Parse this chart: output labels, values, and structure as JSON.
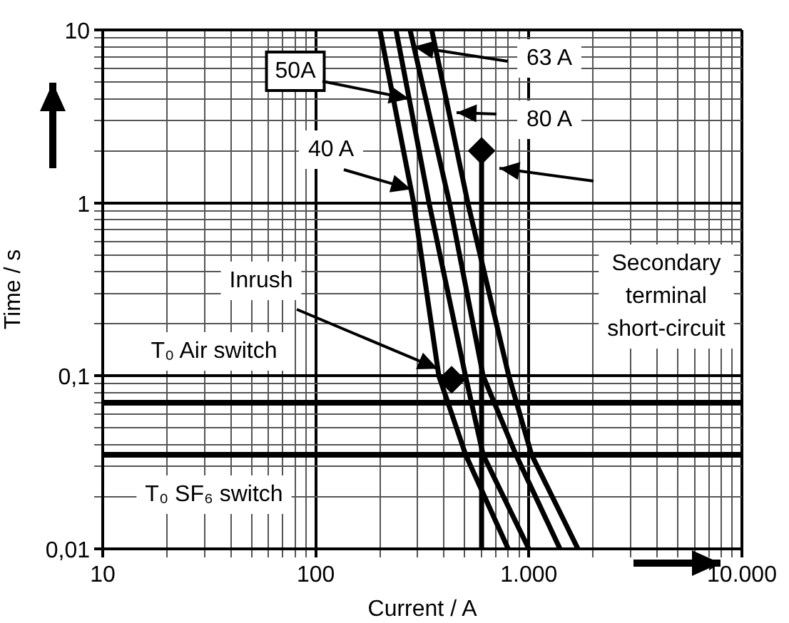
{
  "chart_data": {
    "type": "line",
    "xlabel": "Current / A",
    "ylabel": "Time / s",
    "log": "xy",
    "grid": true,
    "legend": false,
    "marker": "none",
    "line_style": "solid",
    "xlim": [
      10,
      10000
    ],
    "ylim": [
      0.01,
      10
    ],
    "xticks": [
      10,
      {
        "value": 20,
        "label": null
      },
      {
        "value": 30,
        "label": null
      },
      {
        "value": 40,
        "label": null
      },
      {
        "value": 50,
        "label": null
      },
      {
        "value": 60,
        "label": null
      },
      {
        "value": 70,
        "label": null
      },
      {
        "value": 80,
        "label": null
      },
      {
        "value": 90,
        "label": null
      },
      100,
      {
        "value": 200,
        "label": null
      },
      {
        "value": 300,
        "label": null
      },
      {
        "value": 400,
        "label": null
      },
      {
        "value": 500,
        "label": null
      },
      {
        "value": 600,
        "label": null
      },
      {
        "value": 700,
        "label": null
      },
      {
        "value": 800,
        "label": null
      },
      {
        "value": 900,
        "label": null
      },
      {
        "value": 1000,
        "label": "1.000"
      },
      {
        "value": 2000,
        "label": null
      },
      {
        "value": 3000,
        "label": null
      },
      {
        "value": 4000,
        "label": null
      },
      {
        "value": 5000,
        "label": null
      },
      {
        "value": 6000,
        "label": null
      },
      {
        "value": 7000,
        "label": null
      },
      {
        "value": 8000,
        "label": null
      },
      {
        "value": 9000,
        "label": null
      },
      {
        "value": 10000,
        "label": "10.000"
      }
    ],
    "yticks": [
      {
        "value": 0.01,
        "label": "0,01"
      },
      {
        "value": 0.02,
        "label": null
      },
      {
        "value": 0.03,
        "label": null
      },
      {
        "value": 0.04,
        "label": null
      },
      {
        "value": 0.05,
        "label": null
      },
      {
        "value": 0.06,
        "label": null
      },
      {
        "value": 0.07,
        "label": null
      },
      {
        "value": 0.08,
        "label": null
      },
      {
        "value": 0.09,
        "label": null
      },
      {
        "value": 0.1,
        "label": "0,1"
      },
      {
        "value": 0.2,
        "label": null
      },
      {
        "value": 0.3,
        "label": null
      },
      {
        "value": 0.4,
        "label": null
      },
      {
        "value": 0.5,
        "label": null
      },
      {
        "value": 0.6,
        "label": null
      },
      {
        "value": 0.7,
        "label": null
      },
      {
        "value": 0.8,
        "label": null
      },
      {
        "value": 0.9,
        "label": null
      },
      1,
      {
        "value": 2,
        "label": null
      },
      {
        "value": 3,
        "label": null
      },
      {
        "value": 4,
        "label": null
      },
      {
        "value": 5,
        "label": null
      },
      {
        "value": 6,
        "label": null
      },
      {
        "value": 7,
        "label": null
      },
      {
        "value": 8,
        "label": null
      },
      {
        "value": 9,
        "label": null
      },
      10
    ],
    "series": [
      {
        "color": "#000000",
        "x": [
          200,
          288,
          378,
          505,
          800
        ],
        "values": [
          10,
          1,
          0.1,
          0.035,
          0.01
        ]
      },
      {
        "color": "#000000",
        "x": [
          238,
          340,
          504,
          610,
          1000
        ],
        "values": [
          10,
          1,
          0.1,
          0.035,
          0.01
        ]
      },
      {
        "color": "#000000",
        "x": [
          277,
          424,
          610,
          870,
          1400
        ],
        "values": [
          10,
          1,
          0.1,
          0.035,
          0.01
        ]
      },
      {
        "color": "#000000",
        "x": [
          350,
          517,
          805,
          1030,
          1700
        ],
        "values": [
          10,
          1,
          0.1,
          0.035,
          0.01
        ]
      },
      {
        "color": "#000000",
        "marker": "diamond",
        "x": [
          600,
          600
        ],
        "values": [
          0.01,
          2
        ]
      },
      {
        "type": "scatter",
        "color": "#000000",
        "marker": "diamond",
        "x": [
          434
        ],
        "values": [
          0.095
        ]
      }
    ],
    "annotations": [
      {
        "text": "40 A",
        "x": 280,
        "y": 1.2
      },
      {
        "text": "50A",
        "x": 274,
        "y": 4
      },
      {
        "text": "63 A",
        "x": 289,
        "y": 8
      },
      "80 A",
      "Secondary terminal short-circuit",
      {
        "text": "Inrush",
        "x": 374,
        "y": 0.11
      }
    ],
    "ref_lines": [
      {
        "axis": "y",
        "value": 0.07,
        "label": "T₀ Air switch",
        "color": "#000000"
      },
      {
        "axis": "y",
        "value": 0.035,
        "label": "T₀ SF₆ switch",
        "color": "#000000"
      }
    ]
  }
}
